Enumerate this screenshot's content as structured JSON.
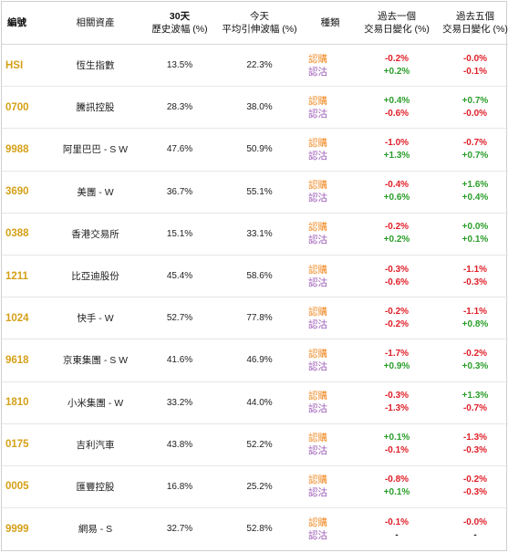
{
  "headers": {
    "code": "編號",
    "asset": "相關資產",
    "hv_line1": "30天",
    "hv_line2": "歷史波幅 (%)",
    "iv_line1": "今天",
    "iv_line2": "平均引伸波幅 (%)",
    "type": "種類",
    "d1_line1": "過去一個",
    "d1_line2": "交易日變化 (%)",
    "d5_line1": "過去五個",
    "d5_line2": "交易日變化 (%)"
  },
  "type_labels": {
    "call": "認購",
    "put": "認沽"
  },
  "rows": [
    {
      "code": "HSI",
      "name": "恆生指數",
      "hv": "13.5%",
      "iv": "22.3%",
      "d1_call": "-0.2%",
      "d1_put": "+0.2%",
      "d5_call": "-0.0%",
      "d5_put": "-0.1%"
    },
    {
      "code": "0700",
      "name": "騰訊控股",
      "hv": "28.3%",
      "iv": "38.0%",
      "d1_call": "+0.4%",
      "d1_put": "-0.6%",
      "d5_call": "+0.7%",
      "d5_put": "-0.0%"
    },
    {
      "code": "9988",
      "name": "阿里巴巴 - S W",
      "hv": "47.6%",
      "iv": "50.9%",
      "d1_call": "-1.0%",
      "d1_put": "+1.3%",
      "d5_call": "-0.7%",
      "d5_put": "+0.7%"
    },
    {
      "code": "3690",
      "name": "美團 - W",
      "hv": "36.7%",
      "iv": "55.1%",
      "d1_call": "-0.4%",
      "d1_put": "+0.6%",
      "d5_call": "+1.6%",
      "d5_put": "+0.4%"
    },
    {
      "code": "0388",
      "name": "香港交易所",
      "hv": "15.1%",
      "iv": "33.1%",
      "d1_call": "-0.2%",
      "d1_put": "+0.2%",
      "d5_call": "+0.0%",
      "d5_put": "+0.1%"
    },
    {
      "code": "1211",
      "name": "比亞迪股份",
      "hv": "45.4%",
      "iv": "58.6%",
      "d1_call": "-0.3%",
      "d1_put": "-0.6%",
      "d5_call": "-1.1%",
      "d5_put": "-0.3%"
    },
    {
      "code": "1024",
      "name": "快手 - W",
      "hv": "52.7%",
      "iv": "77.8%",
      "d1_call": "-0.2%",
      "d1_put": "-0.2%",
      "d5_call": "-1.1%",
      "d5_put": "+0.8%"
    },
    {
      "code": "9618",
      "name": "京東集團 - S W",
      "hv": "41.6%",
      "iv": "46.9%",
      "d1_call": "-1.7%",
      "d1_put": "+0.9%",
      "d5_call": "-0.2%",
      "d5_put": "+0.3%"
    },
    {
      "code": "1810",
      "name": "小米集團 - W",
      "hv": "33.2%",
      "iv": "44.0%",
      "d1_call": "-0.3%",
      "d1_put": "-1.3%",
      "d5_call": "+1.3%",
      "d5_put": "-0.7%"
    },
    {
      "code": "0175",
      "name": "吉利汽車",
      "hv": "43.8%",
      "iv": "52.2%",
      "d1_call": "+0.1%",
      "d1_put": "-0.1%",
      "d5_call": "-1.3%",
      "d5_put": "-0.3%"
    },
    {
      "code": "0005",
      "name": "匯豐控股",
      "hv": "16.8%",
      "iv": "25.2%",
      "d1_call": "-0.8%",
      "d1_put": "+0.1%",
      "d5_call": "-0.2%",
      "d5_put": "-0.3%"
    },
    {
      "code": "9999",
      "name": "網易 - S",
      "hv": "32.7%",
      "iv": "52.8%",
      "d1_call": "-0.1%",
      "d1_put": "-",
      "d5_call": "-0.0%",
      "d5_put": "-"
    }
  ]
}
